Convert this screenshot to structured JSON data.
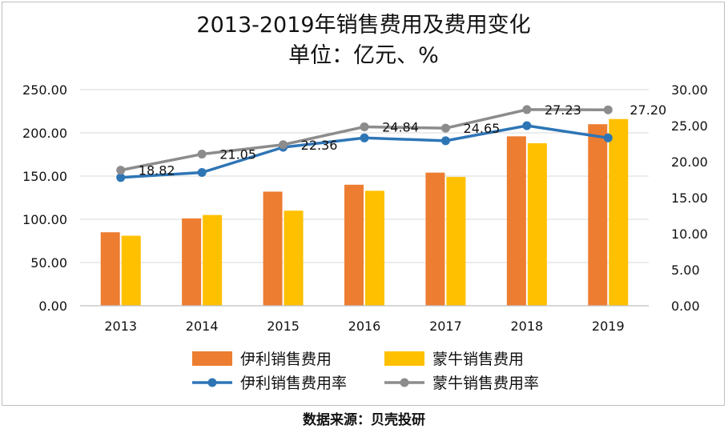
{
  "chart_data": {
    "type": "bar",
    "title": "2013-2019年销售费用及费用变化",
    "subtitle": "单位：亿元、%",
    "categories": [
      "2013",
      "2014",
      "2015",
      "2016",
      "2017",
      "2018",
      "2019"
    ],
    "ylim_left": [
      0,
      250
    ],
    "ylim_right": [
      0,
      30
    ],
    "left_ticks": [
      "0.00",
      "50.00",
      "100.00",
      "150.00",
      "200.00",
      "250.00"
    ],
    "right_ticks": [
      "0.00",
      "5.00",
      "10.00",
      "15.00",
      "20.00",
      "25.00",
      "30.00"
    ],
    "grid": true,
    "legend_position": "bottom",
    "bar_series": [
      {
        "name": "伊利销售费用",
        "color": "#ED7D31",
        "values": [
          85,
          101,
          132,
          140,
          154,
          196,
          210
        ]
      },
      {
        "name": "蒙牛销售费用",
        "color": "#FFC000",
        "values": [
          81,
          105,
          110,
          133,
          149,
          188,
          216
        ]
      }
    ],
    "line_series": [
      {
        "name": "伊利销售费用率",
        "color": "#2E75B6",
        "values": [
          17.8,
          18.5,
          22.0,
          23.3,
          22.9,
          25.0,
          23.3
        ]
      },
      {
        "name": "蒙牛销售费用率",
        "color": "#8C8C8C",
        "values": [
          18.82,
          21.05,
          22.36,
          24.84,
          24.65,
          27.23,
          27.2
        ]
      }
    ],
    "data_labels": [
      "18.82",
      "21.05",
      "22.36",
      "24.84",
      "24.65",
      "27.23",
      "27.20"
    ]
  },
  "source_text": "数据来源：贝壳投研"
}
